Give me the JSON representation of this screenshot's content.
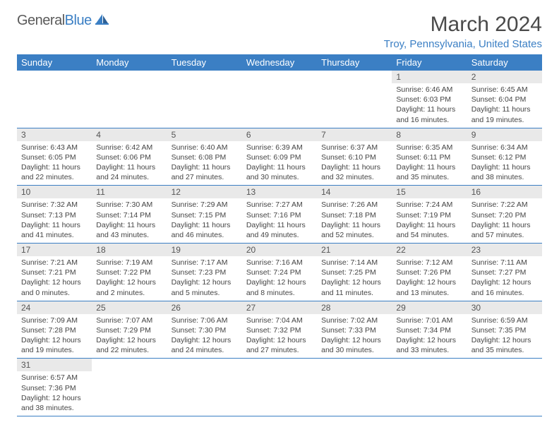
{
  "logo": {
    "text1": "General",
    "text2": "Blue"
  },
  "title": "March 2024",
  "location": "Troy, Pennsylvania, United States",
  "colors": {
    "accent": "#3b7fc4",
    "header_text": "#ffffff",
    "daynum_bg": "#e9e9e9",
    "body_text": "#444444",
    "title_text": "#4a4a4a"
  },
  "weekdays": [
    "Sunday",
    "Monday",
    "Tuesday",
    "Wednesday",
    "Thursday",
    "Friday",
    "Saturday"
  ],
  "weeks": [
    [
      null,
      null,
      null,
      null,
      null,
      {
        "n": "1",
        "sr": "6:46 AM",
        "ss": "6:03 PM",
        "dl": "11 hours and 16 minutes."
      },
      {
        "n": "2",
        "sr": "6:45 AM",
        "ss": "6:04 PM",
        "dl": "11 hours and 19 minutes."
      }
    ],
    [
      {
        "n": "3",
        "sr": "6:43 AM",
        "ss": "6:05 PM",
        "dl": "11 hours and 22 minutes."
      },
      {
        "n": "4",
        "sr": "6:42 AM",
        "ss": "6:06 PM",
        "dl": "11 hours and 24 minutes."
      },
      {
        "n": "5",
        "sr": "6:40 AM",
        "ss": "6:08 PM",
        "dl": "11 hours and 27 minutes."
      },
      {
        "n": "6",
        "sr": "6:39 AM",
        "ss": "6:09 PM",
        "dl": "11 hours and 30 minutes."
      },
      {
        "n": "7",
        "sr": "6:37 AM",
        "ss": "6:10 PM",
        "dl": "11 hours and 32 minutes."
      },
      {
        "n": "8",
        "sr": "6:35 AM",
        "ss": "6:11 PM",
        "dl": "11 hours and 35 minutes."
      },
      {
        "n": "9",
        "sr": "6:34 AM",
        "ss": "6:12 PM",
        "dl": "11 hours and 38 minutes."
      }
    ],
    [
      {
        "n": "10",
        "sr": "7:32 AM",
        "ss": "7:13 PM",
        "dl": "11 hours and 41 minutes."
      },
      {
        "n": "11",
        "sr": "7:30 AM",
        "ss": "7:14 PM",
        "dl": "11 hours and 43 minutes."
      },
      {
        "n": "12",
        "sr": "7:29 AM",
        "ss": "7:15 PM",
        "dl": "11 hours and 46 minutes."
      },
      {
        "n": "13",
        "sr": "7:27 AM",
        "ss": "7:16 PM",
        "dl": "11 hours and 49 minutes."
      },
      {
        "n": "14",
        "sr": "7:26 AM",
        "ss": "7:18 PM",
        "dl": "11 hours and 52 minutes."
      },
      {
        "n": "15",
        "sr": "7:24 AM",
        "ss": "7:19 PM",
        "dl": "11 hours and 54 minutes."
      },
      {
        "n": "16",
        "sr": "7:22 AM",
        "ss": "7:20 PM",
        "dl": "11 hours and 57 minutes."
      }
    ],
    [
      {
        "n": "17",
        "sr": "7:21 AM",
        "ss": "7:21 PM",
        "dl": "12 hours and 0 minutes."
      },
      {
        "n": "18",
        "sr": "7:19 AM",
        "ss": "7:22 PM",
        "dl": "12 hours and 2 minutes."
      },
      {
        "n": "19",
        "sr": "7:17 AM",
        "ss": "7:23 PM",
        "dl": "12 hours and 5 minutes."
      },
      {
        "n": "20",
        "sr": "7:16 AM",
        "ss": "7:24 PM",
        "dl": "12 hours and 8 minutes."
      },
      {
        "n": "21",
        "sr": "7:14 AM",
        "ss": "7:25 PM",
        "dl": "12 hours and 11 minutes."
      },
      {
        "n": "22",
        "sr": "7:12 AM",
        "ss": "7:26 PM",
        "dl": "12 hours and 13 minutes."
      },
      {
        "n": "23",
        "sr": "7:11 AM",
        "ss": "7:27 PM",
        "dl": "12 hours and 16 minutes."
      }
    ],
    [
      {
        "n": "24",
        "sr": "7:09 AM",
        "ss": "7:28 PM",
        "dl": "12 hours and 19 minutes."
      },
      {
        "n": "25",
        "sr": "7:07 AM",
        "ss": "7:29 PM",
        "dl": "12 hours and 22 minutes."
      },
      {
        "n": "26",
        "sr": "7:06 AM",
        "ss": "7:30 PM",
        "dl": "12 hours and 24 minutes."
      },
      {
        "n": "27",
        "sr": "7:04 AM",
        "ss": "7:32 PM",
        "dl": "12 hours and 27 minutes."
      },
      {
        "n": "28",
        "sr": "7:02 AM",
        "ss": "7:33 PM",
        "dl": "12 hours and 30 minutes."
      },
      {
        "n": "29",
        "sr": "7:01 AM",
        "ss": "7:34 PM",
        "dl": "12 hours and 33 minutes."
      },
      {
        "n": "30",
        "sr": "6:59 AM",
        "ss": "7:35 PM",
        "dl": "12 hours and 35 minutes."
      }
    ],
    [
      {
        "n": "31",
        "sr": "6:57 AM",
        "ss": "7:36 PM",
        "dl": "12 hours and 38 minutes."
      },
      null,
      null,
      null,
      null,
      null,
      null
    ]
  ],
  "labels": {
    "sunrise": "Sunrise: ",
    "sunset": "Sunset: ",
    "daylight": "Daylight: "
  }
}
